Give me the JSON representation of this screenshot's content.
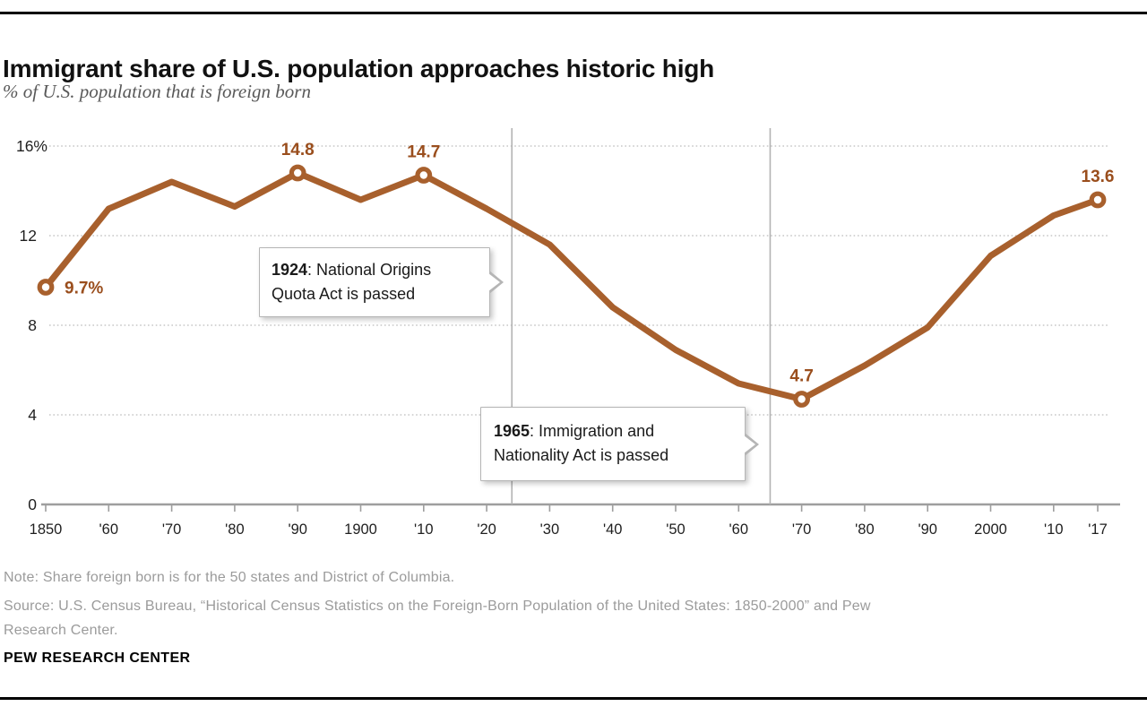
{
  "header": {
    "title": "Immigrant share of U.S. population approaches historic high",
    "subtitle": "% of U.S. population that is foreign born"
  },
  "chart_data": {
    "type": "line",
    "x": [
      1850,
      1860,
      1870,
      1880,
      1890,
      1900,
      1910,
      1920,
      1930,
      1940,
      1950,
      1960,
      1970,
      1980,
      1990,
      2000,
      2010,
      2017
    ],
    "values": [
      9.7,
      13.2,
      14.4,
      13.3,
      14.8,
      13.6,
      14.7,
      13.2,
      11.6,
      8.8,
      6.9,
      5.4,
      4.7,
      6.2,
      7.9,
      11.1,
      12.9,
      13.6
    ],
    "x_tick_labels": [
      "1850",
      "'60",
      "'70",
      "'80",
      "'90",
      "1900",
      "'10",
      "'20",
      "'30",
      "'40",
      "'50",
      "'60",
      "'70",
      "'80",
      "'90",
      "2000",
      "'10",
      "'17"
    ],
    "y_ticks": [
      {
        "label": "16%",
        "value": 16
      },
      {
        "label": "12",
        "value": 12
      },
      {
        "label": "8",
        "value": 8
      },
      {
        "label": "4",
        "value": 4
      },
      {
        "label": "0",
        "value": 0
      }
    ],
    "xlim": [
      1850,
      2017
    ],
    "ylim": [
      0,
      16
    ],
    "grid": "dotted-horizontal",
    "legend": "none",
    "labeled_points": [
      {
        "year": 1850,
        "value": 9.7,
        "label": "9.7%",
        "placement": "right"
      },
      {
        "year": 1890,
        "value": 14.8,
        "label": "14.8",
        "placement": "above"
      },
      {
        "year": 1910,
        "value": 14.7,
        "label": "14.7",
        "placement": "above"
      },
      {
        "year": 1970,
        "value": 4.7,
        "label": "4.7",
        "placement": "above"
      },
      {
        "year": 2017,
        "value": 13.6,
        "label": "13.6",
        "placement": "above"
      }
    ],
    "event_lines": [
      {
        "year": 1924
      },
      {
        "year": 1965
      }
    ]
  },
  "annotations": [
    {
      "year": "1924",
      "text": ": National Origins Quota Act is passed"
    },
    {
      "year": "1965",
      "text": ": Immigration and Nationality Act is passed"
    }
  ],
  "footer": {
    "note": "Note: Share foreign born is for the 50 states and District of Columbia.",
    "source": "Source: U.S. Census Bureau, “Historical Census Statistics on the Foreign-Born Population of the United States: 1850-2000” and Pew Research Center.",
    "brand": "PEW RESEARCH CENTER"
  },
  "colors": {
    "line": "#a8602d",
    "point_label": "#9a4e1d",
    "grid": "#c7c7c7",
    "axis": "#9e9e9e",
    "event_line": "#b3b3b3",
    "tick_label": "#1f1f1f",
    "title": "#111111",
    "subtitle": "#595959",
    "note": "#9b9b9b",
    "callout_border": "#b5b5b5"
  }
}
